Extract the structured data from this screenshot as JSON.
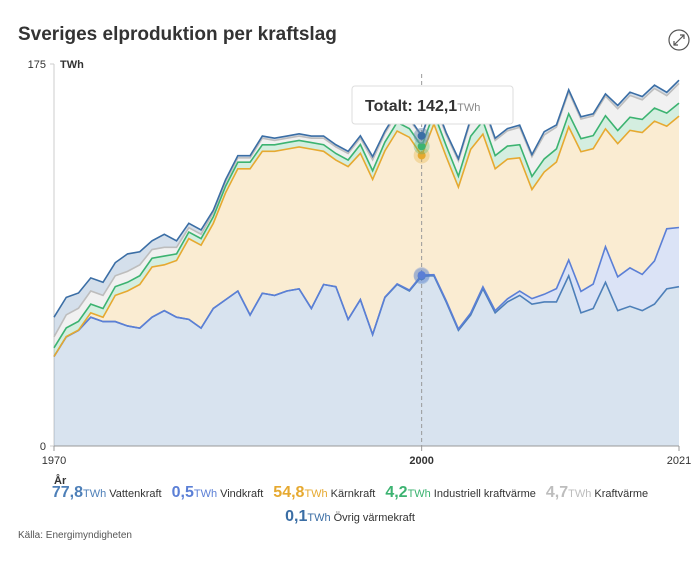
{
  "chart_data": {
    "type": "stacked_area",
    "title": "Sveriges elproduktion per kraftslag",
    "y_label": "TWh",
    "x_label": "År",
    "unit": "TWh",
    "source": "Källa: Energimyndigheten",
    "x": [
      1970,
      1971,
      1972,
      1973,
      1974,
      1975,
      1976,
      1977,
      1978,
      1979,
      1980,
      1981,
      1982,
      1983,
      1984,
      1985,
      1986,
      1987,
      1988,
      1989,
      1990,
      1991,
      1992,
      1993,
      1994,
      1995,
      1996,
      1997,
      1998,
      1999,
      2000,
      2001,
      2002,
      2003,
      2004,
      2005,
      2006,
      2007,
      2008,
      2009,
      2010,
      2011,
      2012,
      2013,
      2014,
      2015,
      2016,
      2017,
      2018,
      2019,
      2020,
      2021
    ],
    "xlim": [
      1970,
      2021
    ],
    "xticks": [
      1970,
      2000,
      2021
    ],
    "ylim": [
      0,
      175
    ],
    "yticks": [
      0,
      175
    ],
    "hover_x": 2000,
    "tooltip": {
      "label": "Totalt:",
      "value": 142.1,
      "value_label": "142,1"
    },
    "series": [
      {
        "name": "Vattenkraft",
        "color": "#4d7fb8",
        "hover_value_label": "77,8",
        "values": [
          41,
          50,
          53,
          59,
          57,
          57,
          55,
          54,
          59,
          62,
          59,
          58,
          54,
          63,
          67,
          71,
          60,
          70,
          69,
          71,
          72,
          63,
          74,
          73,
          58,
          67,
          51,
          68,
          74,
          71,
          77.8,
          78,
          66,
          53,
          60,
          72,
          61,
          66,
          69,
          65,
          66,
          66,
          78,
          61,
          63,
          75,
          62,
          64,
          62,
          65,
          72,
          73
        ]
      },
      {
        "name": "Vindkraft",
        "color": "#5b7fd6",
        "hover_value_label": "0,5",
        "values": [
          0,
          0,
          0,
          0,
          0,
          0,
          0,
          0,
          0,
          0,
          0,
          0,
          0,
          0,
          0,
          0,
          0,
          0,
          0,
          0,
          0,
          0,
          0,
          0,
          0,
          0.1,
          0.1,
          0.2,
          0.3,
          0.4,
          0.5,
          0.5,
          0.6,
          0.6,
          0.9,
          0.9,
          1.0,
          1.4,
          2.0,
          2.5,
          3.5,
          6.1,
          7.2,
          9.8,
          11.2,
          16.3,
          15.5,
          17.6,
          16.6,
          19.8,
          27.5,
          27.1
        ]
      },
      {
        "name": "Kärnkraft",
        "color": "#e6a930",
        "hover_value_label": "54,8",
        "values": [
          0,
          0.1,
          0.1,
          2,
          2,
          12,
          16,
          20,
          23,
          21,
          26,
          37,
          38,
          39,
          49,
          56,
          67,
          65,
          66,
          65,
          65,
          73,
          61,
          58,
          70,
          67,
          71,
          67,
          70,
          70,
          54.8,
          69,
          66,
          65,
          75,
          70,
          65,
          64,
          61,
          50,
          56,
          58,
          61,
          64,
          62,
          54,
          61,
          63,
          65,
          64,
          47,
          51
        ]
      },
      {
        "name": "Industriell kraftvärme",
        "color": "#3cb371",
        "hover_value_label": "4,2",
        "values": [
          4,
          4,
          4,
          4,
          4,
          4,
          4,
          4,
          4,
          4,
          3,
          3,
          3,
          3,
          3,
          3,
          3,
          3,
          3,
          3,
          3,
          3,
          3,
          3,
          3,
          4,
          4,
          4,
          4,
          4,
          4.2,
          5,
          5,
          5,
          6,
          6,
          6,
          6,
          6,
          6,
          6,
          6,
          6,
          6,
          6,
          6,
          6,
          6,
          6,
          6,
          6,
          6
        ]
      },
      {
        "name": "Kraftvärme",
        "color": "#bdbdbd",
        "hover_value_label": "4,7",
        "values": [
          5,
          6,
          6,
          6,
          6,
          5,
          5,
          5,
          4,
          4,
          3,
          2,
          2,
          2,
          2,
          2,
          2,
          3,
          2,
          2,
          2,
          2,
          3,
          3,
          3,
          3,
          5,
          4,
          4,
          4,
          4.7,
          5,
          5,
          7,
          7,
          7,
          7,
          7,
          8,
          9,
          11,
          10,
          10,
          9,
          9,
          9,
          10,
          10,
          9,
          9,
          8,
          9
        ]
      },
      {
        "name": "Övrig värmekraft",
        "color": "#3b6ea5",
        "hover_value_label": "0,1",
        "values": [
          9,
          8,
          7,
          6,
          6,
          6,
          8,
          6,
          4,
          6,
          3,
          2,
          2,
          1,
          1,
          1,
          1,
          1,
          1,
          1,
          1,
          1,
          1,
          1,
          1,
          1,
          1.5,
          1,
          1,
          1,
          0.1,
          1,
          1,
          1,
          1,
          1,
          1,
          1,
          1,
          1,
          1.5,
          1,
          1,
          1,
          1,
          1,
          1.5,
          1.5,
          1.5,
          1.5,
          1.5,
          1.5
        ]
      }
    ]
  }
}
